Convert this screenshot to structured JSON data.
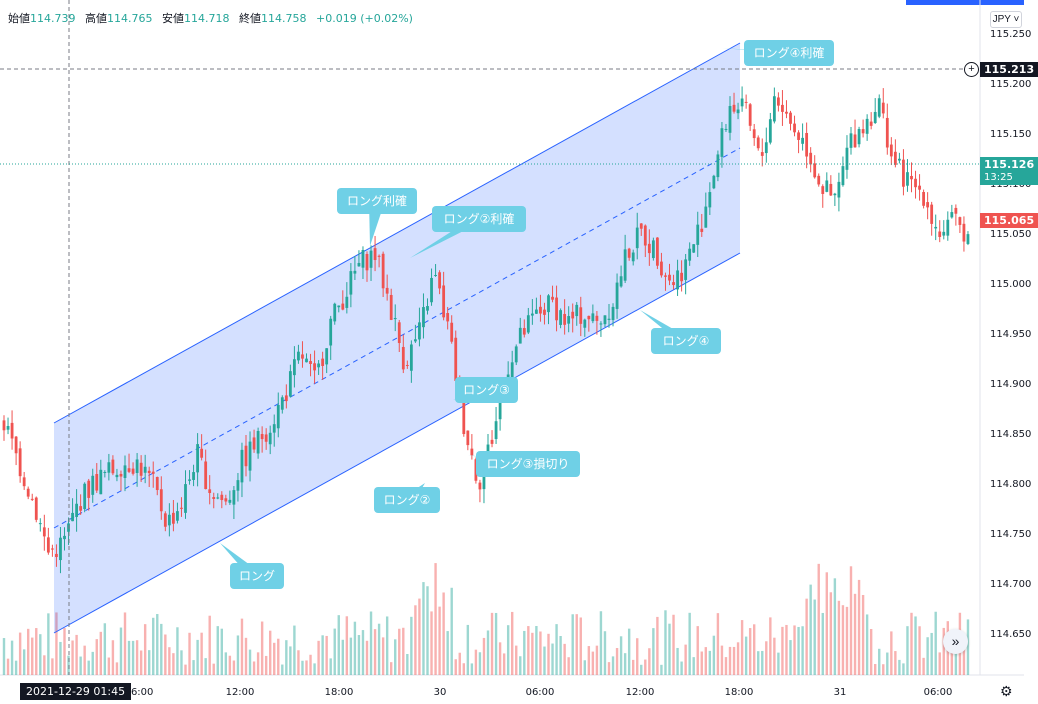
{
  "header": {
    "open_label": "始値",
    "open": "114.739",
    "high_label": "高値",
    "high": "114.765",
    "low_label": "安値",
    "low": "114.718",
    "close_label": "終値",
    "close": "114.758",
    "change": "+0.019 (+0.02%)",
    "currency": "JPY ˅"
  },
  "price_tags": {
    "crosshair": "115.213",
    "last": "115.126",
    "countdown": "13:25",
    "low_tag": "115.065"
  },
  "crosshair_date": "2021-12-29  01:45",
  "scroll_glyph": "»",
  "gear_glyph": "⚙",
  "plus_glyph": "+",
  "colors": {
    "up": "#26a69a",
    "down": "#ef5350",
    "channel": "#2962ff",
    "callout": "#6fd0e6"
  },
  "callouts": [
    {
      "text": "ロング④利確"
    },
    {
      "text": "ロング利確"
    },
    {
      "text": "ロング②利確"
    },
    {
      "text": "ロング④"
    },
    {
      "text": "ロング③"
    },
    {
      "text": "ロング③損切り"
    },
    {
      "text": "ロング②"
    },
    {
      "text": "ロング"
    }
  ],
  "chart_data": {
    "type": "candlestick",
    "y_ticks": [
      "115.250",
      "115.200",
      "115.150",
      "115.100",
      "115.050",
      "115.000",
      "114.950",
      "114.900",
      "114.850",
      "114.800",
      "114.750",
      "114.700",
      "114.650"
    ],
    "x_ticks": [
      "06:00",
      "12:00",
      "18:00",
      "30",
      "06:00",
      "12:00",
      "18:00",
      "31",
      "06:00"
    ],
    "ylim": [
      114.62,
      115.27
    ],
    "channel": {
      "start": [
        "12-29 01:45",
        114.86
      ],
      "end": [
        "12-30 18:00",
        115.24
      ],
      "width": 0.21
    },
    "close_path": [
      114.86,
      114.82,
      114.78,
      114.73,
      114.74,
      114.78,
      114.8,
      114.81,
      114.82,
      114.82,
      114.8,
      114.76,
      114.78,
      114.83,
      114.79,
      114.78,
      114.82,
      114.84,
      114.86,
      114.89,
      114.93,
      114.9,
      114.96,
      114.99,
      115.02,
      115.03,
      114.98,
      114.92,
      114.95,
      115.01,
      114.95,
      114.86,
      114.8,
      114.85,
      114.92,
      114.95,
      114.97,
      114.98,
      114.96,
      114.97,
      114.96,
      114.98,
      115.03,
      115.05,
      115.03,
      115.0,
      115.02,
      115.06,
      115.12,
      115.18,
      115.17,
      115.12,
      115.19,
      115.16,
      115.14,
      115.1,
      115.08,
      115.14,
      115.16,
      115.18,
      115.12,
      115.1,
      115.09,
      115.05,
      115.06,
      115.05
    ]
  }
}
